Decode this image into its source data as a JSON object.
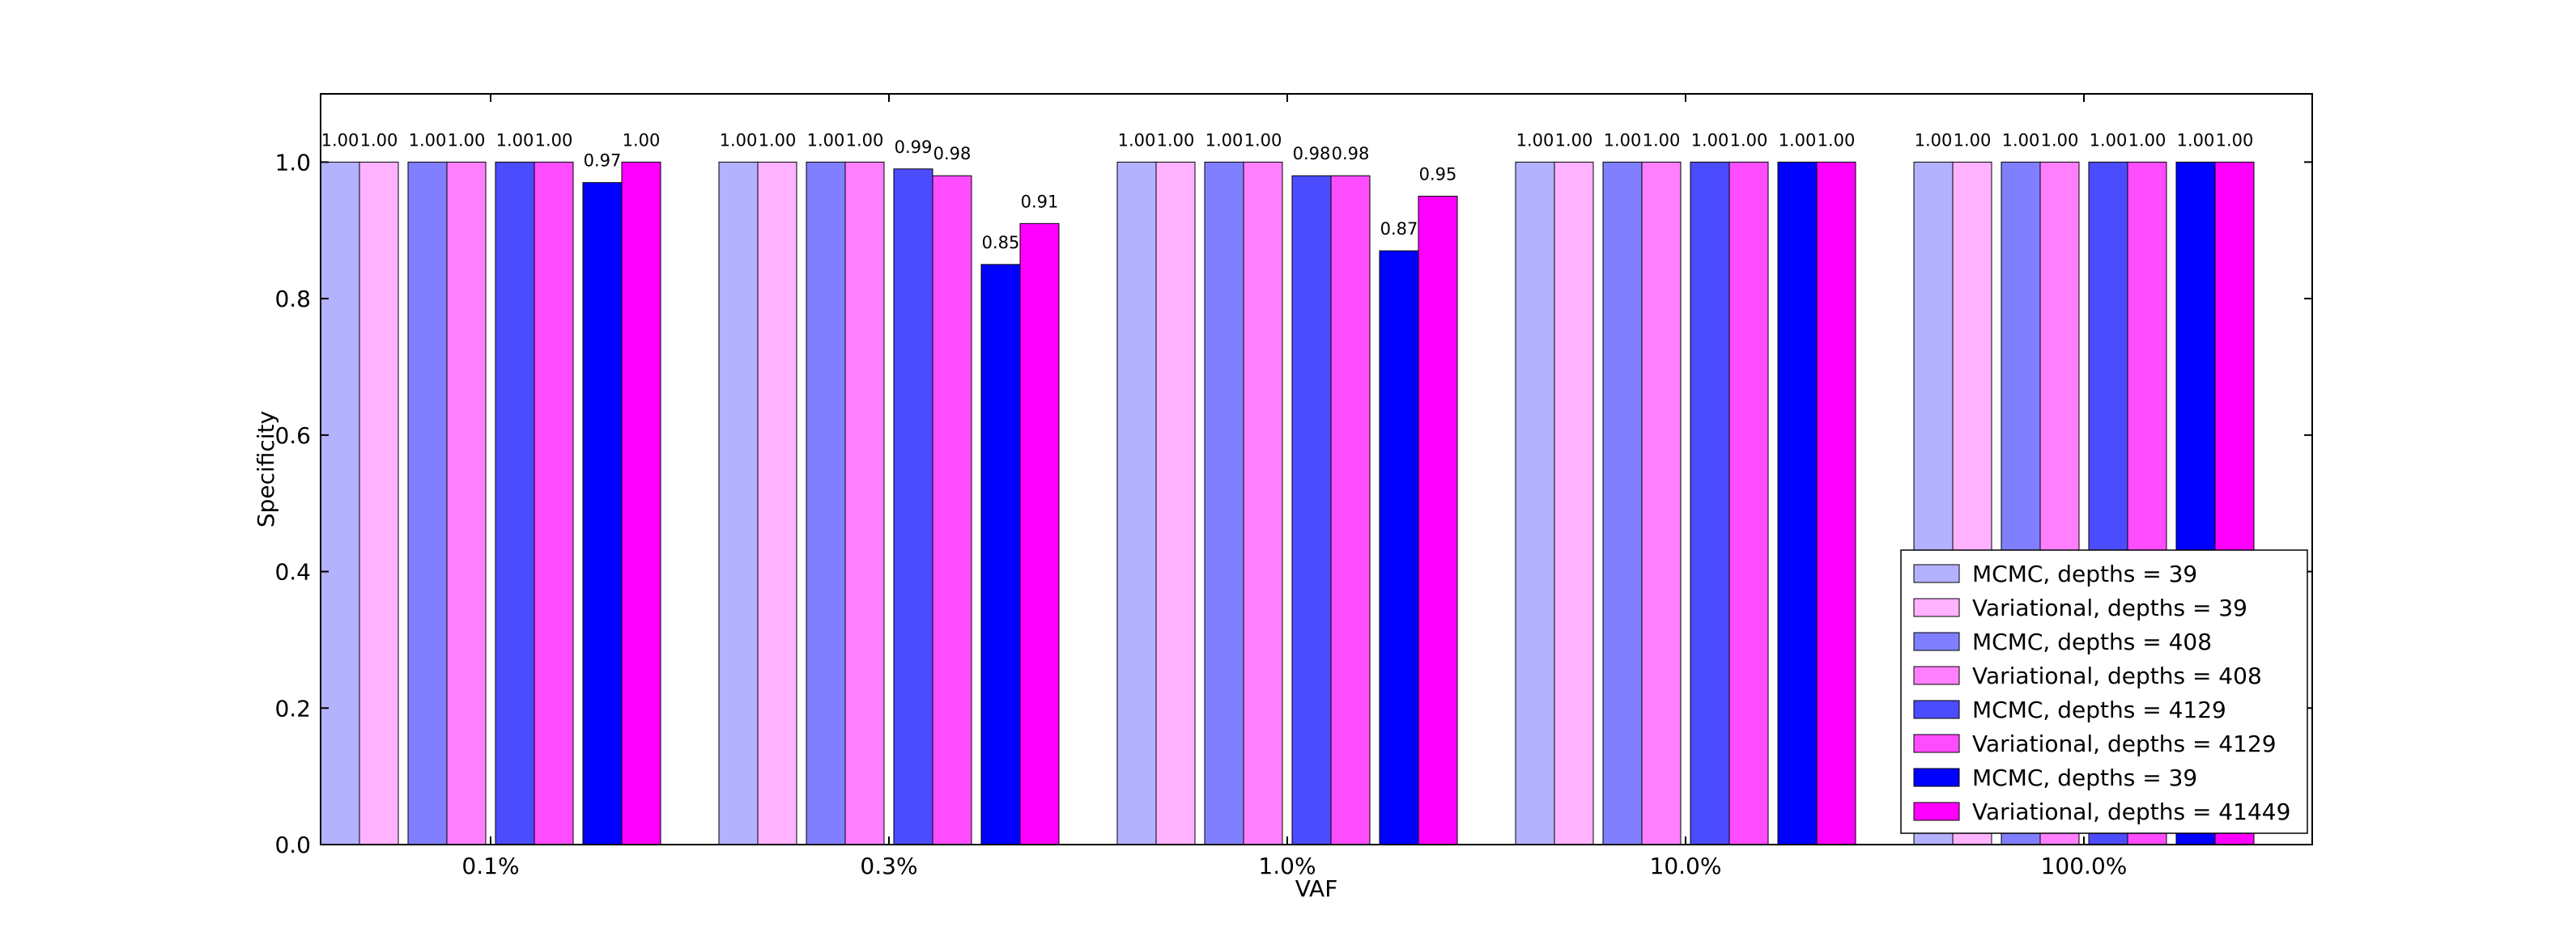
{
  "chart_data": {
    "type": "bar",
    "xlabel": "VAF",
    "ylabel": "Specificity",
    "ylim": [
      0,
      1.1
    ],
    "yticks": [
      "0.0",
      "0.2",
      "0.4",
      "0.6",
      "0.8",
      "1.0"
    ],
    "categories": [
      "0.1%",
      "0.3%",
      "1.0%",
      "10.0%",
      "100.0%"
    ],
    "legend_position": "bottom-right",
    "series": [
      {
        "name": "MCMC, depths = 39",
        "color": "#b2b2ff",
        "values": [
          1.0,
          1.0,
          1.0,
          1.0,
          1.0
        ],
        "labels": [
          "1.00",
          "1.00",
          "1.00",
          "1.00",
          "1.00"
        ]
      },
      {
        "name": "Variational, depths = 39",
        "color": "#ffb2ff",
        "values": [
          1.0,
          1.0,
          1.0,
          1.0,
          1.0
        ],
        "labels": [
          "1.00",
          "1.00",
          "1.00",
          "1.00",
          "1.00"
        ]
      },
      {
        "name": "MCMC, depths = 408",
        "color": "#7f7fff",
        "values": [
          1.0,
          1.0,
          1.0,
          1.0,
          1.0
        ],
        "labels": [
          "1.00",
          "1.00",
          "1.00",
          "1.00",
          "1.00"
        ]
      },
      {
        "name": "Variational, depths = 408",
        "color": "#ff7fff",
        "values": [
          1.0,
          1.0,
          1.0,
          1.0,
          1.0
        ],
        "labels": [
          "1.00",
          "1.00",
          "1.00",
          "1.00",
          "1.00"
        ]
      },
      {
        "name": "MCMC, depths = 4129",
        "color": "#4c4cff",
        "values": [
          1.0,
          0.99,
          0.98,
          1.0,
          1.0
        ],
        "labels": [
          "1.00",
          "0.99",
          "0.98",
          "1.00",
          "1.00"
        ]
      },
      {
        "name": "Variational, depths = 4129",
        "color": "#ff4cff",
        "values": [
          1.0,
          0.98,
          0.98,
          1.0,
          1.0
        ],
        "labels": [
          "1.00",
          "0.98",
          "0.98",
          "1.00",
          "1.00"
        ]
      },
      {
        "name": "MCMC, depths = 39",
        "color": "#0000ff",
        "values": [
          0.97,
          0.85,
          0.87,
          1.0,
          1.0
        ],
        "labels": [
          "0.97",
          "0.85",
          "0.87",
          "1.00",
          "1.00"
        ]
      },
      {
        "name": "Variational, depths = 41449",
        "color": "#ff00ff",
        "values": [
          1.0,
          0.91,
          0.95,
          1.0,
          1.0
        ],
        "labels": [
          "1.00",
          "0.91",
          "0.95",
          "1.00",
          "1.00"
        ]
      }
    ]
  }
}
